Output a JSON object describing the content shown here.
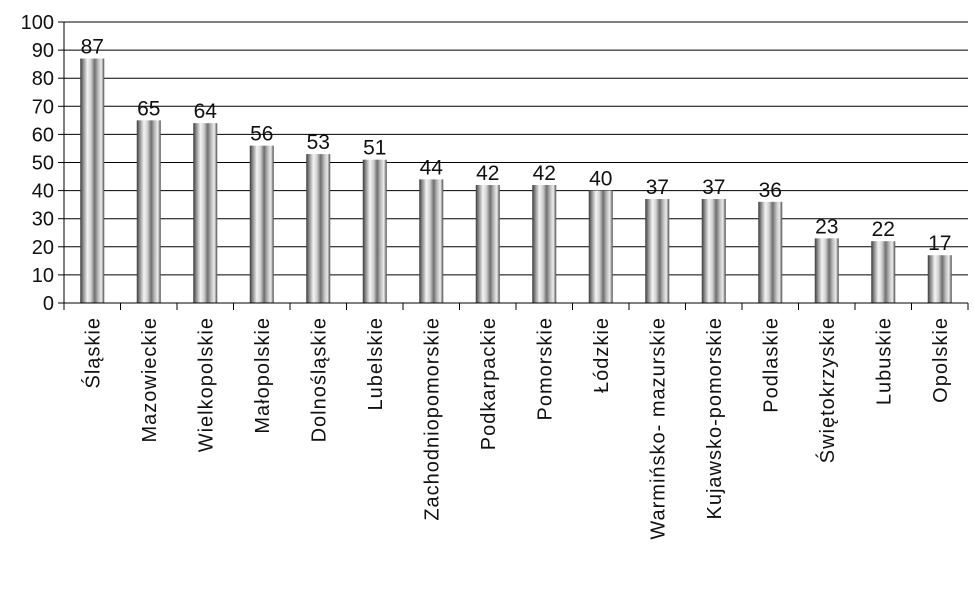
{
  "chart_data": {
    "type": "bar",
    "categories": [
      "Śląskie",
      "Mazowieckie",
      "Wielkopolskie",
      "Małopolskie",
      "Dolnośląskie",
      "Lubelskie",
      "Zachodniopomorskie",
      "Podkarpackie",
      "Pomorskie",
      "Łódzkie",
      "Warmińsko- mazurskie",
      "Kujawsko-pomorskie",
      "Podlaskie",
      "Świętokrzyskie",
      "Lubuskie",
      "Opolskie"
    ],
    "values": [
      87,
      65,
      64,
      56,
      53,
      51,
      44,
      42,
      42,
      40,
      37,
      37,
      36,
      23,
      22,
      17
    ],
    "data_labels": [
      "87",
      "65",
      "64",
      "56",
      "53",
      "51",
      "44",
      "42",
      "42",
      "40",
      "37",
      "37",
      "36",
      "23",
      "22",
      "17"
    ],
    "yticks": [
      "0",
      "10",
      "20",
      "30",
      "40",
      "50",
      "60",
      "70",
      "80",
      "90",
      "100"
    ],
    "ylim": [
      0,
      100
    ],
    "grid": true,
    "legend": "none",
    "colors": {
      "bar_dark": "#3a3a3a",
      "bar_light": "#f2f2f2",
      "grid": "#000000"
    }
  }
}
